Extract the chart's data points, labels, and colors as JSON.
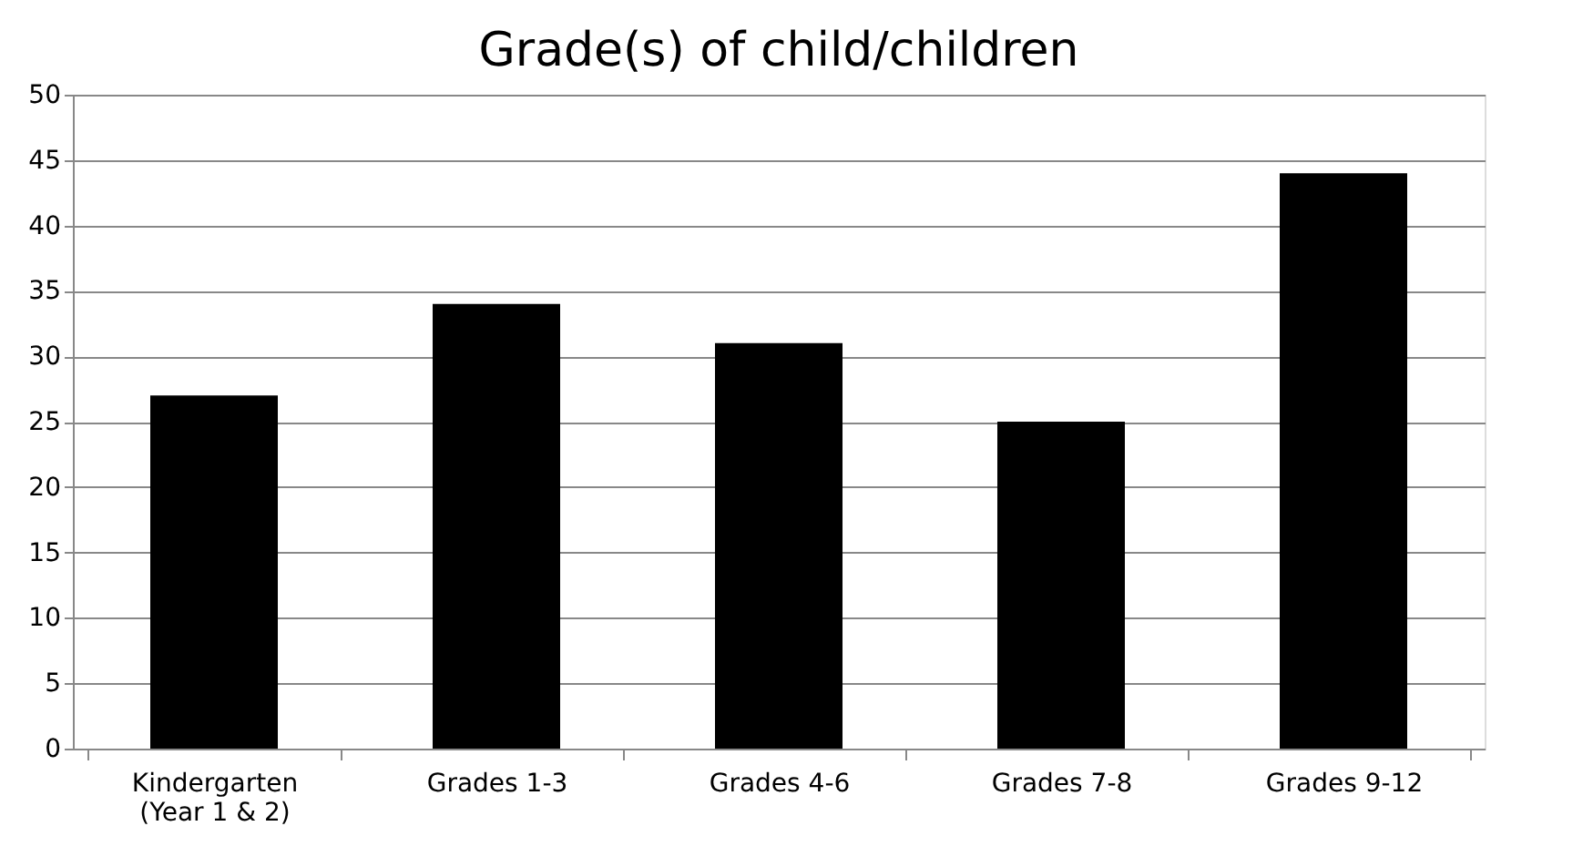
{
  "chart_data": {
    "type": "bar",
    "title": "Grade(s) of child/children",
    "categories": [
      "Kindergarten\n(Year 1 & 2)",
      "Grades 1-3",
      "Grades 4-6",
      "Grades 7-8",
      "Grades 9-12"
    ],
    "values": [
      27,
      34,
      31,
      25,
      44
    ],
    "color": "#000000",
    "ylim": [
      0,
      50
    ],
    "yticks": [
      0,
      5,
      10,
      15,
      20,
      25,
      30,
      35,
      40,
      45,
      50
    ],
    "grid": "y"
  }
}
